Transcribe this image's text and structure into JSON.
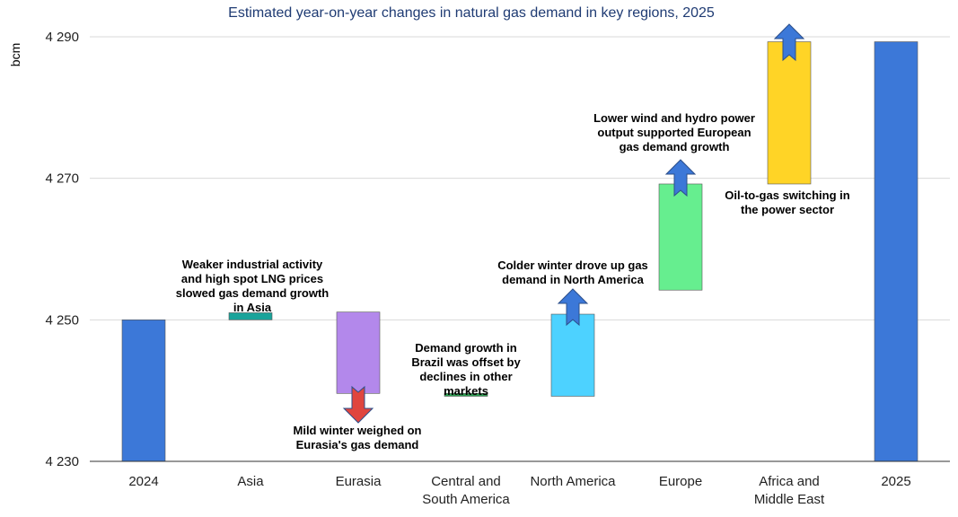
{
  "chart_data": {
    "type": "bar",
    "subtype": "waterfall",
    "title": "Estimated year-on-year changes in natural gas demand in key regions, 2025",
    "xlabel": "",
    "ylabel": "bcm",
    "ylim": [
      4230,
      4292
    ],
    "yticks": [
      4230,
      4250,
      4270,
      4290
    ],
    "ytick_labels": [
      "4 230",
      "4 250",
      "4 270",
      "4 290"
    ],
    "categories": [
      "2024",
      "Asia",
      "Eurasia",
      "Central and South America",
      "North America",
      "Europe",
      "Africa and Middle East",
      "2025"
    ],
    "category_lines": [
      [
        "2024"
      ],
      [
        "Asia"
      ],
      [
        "Eurasia"
      ],
      [
        "Central and",
        "South America"
      ],
      [
        "North America"
      ],
      [
        "Europe"
      ],
      [
        "Africa and",
        "Middle East"
      ],
      [
        "2025"
      ]
    ],
    "bars": [
      {
        "category": "2024",
        "start": 4230,
        "end": 4250,
        "color": "#3c78d8",
        "kind": "total"
      },
      {
        "category": "Asia",
        "start": 4250,
        "end": 4251,
        "color": "#1aa39a",
        "kind": "increase"
      },
      {
        "category": "Eurasia",
        "start": 4251.1,
        "end": 4239.6,
        "color": "#b388eb",
        "kind": "decrease"
      },
      {
        "category": "Central and South America",
        "start": 4239.6,
        "end": 4239.2,
        "color": "#2e9e52",
        "kind": "decrease"
      },
      {
        "category": "North America",
        "start": 4239.2,
        "end": 4250.8,
        "color": "#4dd2ff",
        "kind": "increase"
      },
      {
        "category": "Europe",
        "start": 4254.2,
        "end": 4269.2,
        "color": "#66ee8f",
        "kind": "increase"
      },
      {
        "category": "Africa and Middle East",
        "start": 4269.2,
        "end": 4289.3,
        "color": "#ffd426",
        "kind": "increase"
      },
      {
        "category": "2025",
        "start": 4230,
        "end": 4289.3,
        "color": "#3c78d8",
        "kind": "total"
      }
    ],
    "annotations": [
      {
        "category": "Asia",
        "lines": [
          "Weaker industrial activity",
          "and high spot LNG prices",
          "slowed gas demand growth",
          "in Asia"
        ]
      },
      {
        "category": "Eurasia",
        "lines": [
          "Mild winter weighed on",
          "Eurasia's gas demand"
        ]
      },
      {
        "category": "Central and South America",
        "lines": [
          "Demand growth in",
          "Brazil was offset by",
          "declines in other",
          "markets"
        ]
      },
      {
        "category": "North America",
        "lines": [
          "Colder winter drove up gas",
          "demand in North America"
        ]
      },
      {
        "category": "Europe",
        "lines": [
          "Lower wind and hydro power",
          "output supported European",
          "gas demand growth"
        ]
      },
      {
        "category": "Africa and Middle East",
        "lines": [
          "Oil-to-gas switching in",
          "the power sector"
        ]
      }
    ],
    "arrows": [
      {
        "category": "Eurasia",
        "direction": "down",
        "color": "#e0453e"
      },
      {
        "category": "North America",
        "direction": "up",
        "color": "#3c78d8"
      },
      {
        "category": "Europe",
        "direction": "up",
        "color": "#3c78d8"
      },
      {
        "category": "Africa and Middle East",
        "direction": "up",
        "color": "#3c78d8"
      }
    ]
  }
}
